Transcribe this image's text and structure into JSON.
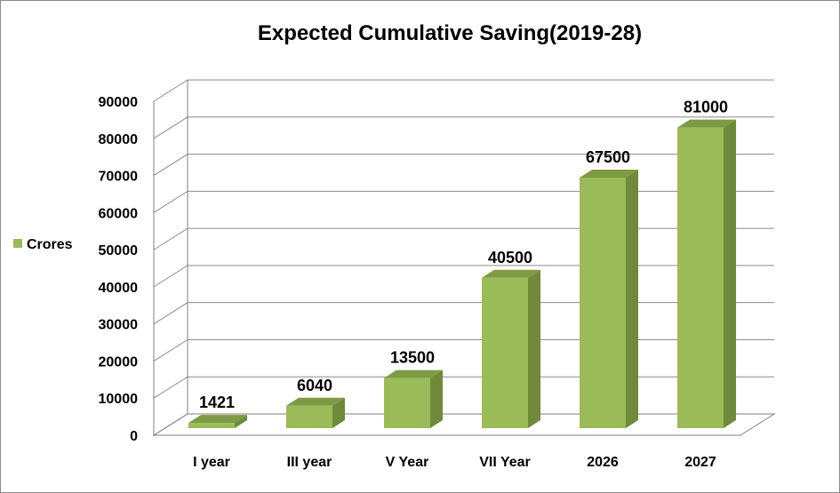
{
  "chart_data": {
    "type": "bar",
    "title": "Expected Cumulative Saving(2019-28)",
    "categories": [
      "I year",
      "III year",
      "V Year",
      "VII Year",
      "2026",
      "2027"
    ],
    "series": [
      {
        "name": "Crores",
        "values": [
          1421,
          6040,
          13500,
          40500,
          67500,
          81000
        ],
        "color": "#9bbb59"
      }
    ],
    "data_labels": [
      "1421",
      "6040",
      "13500",
      "40500",
      "67500",
      "81000"
    ],
    "y_ticks": [
      "0",
      "10000",
      "20000",
      "30000",
      "40000",
      "50000",
      "60000",
      "70000",
      "80000",
      "90000"
    ],
    "ylim": [
      0,
      90000
    ],
    "grid": true,
    "legend_position": "left",
    "three_d": true,
    "colors": {
      "bar_front": "#9bbb59",
      "bar_side": "#6f8a3a",
      "bar_top": "#7d9a45",
      "grid": "#8c8c8c",
      "axis": "#7f7f7f"
    }
  }
}
